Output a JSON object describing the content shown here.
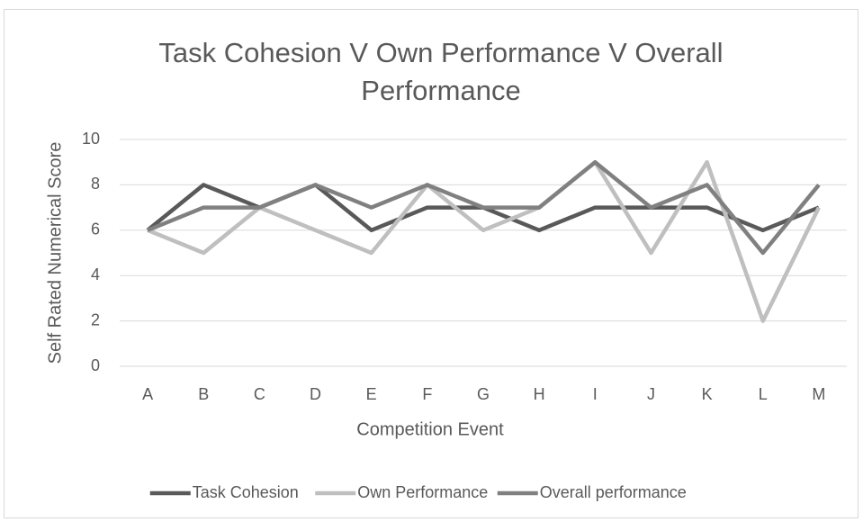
{
  "chart_data": {
    "type": "line",
    "title": "Task Cohesion V Own Performance V Overall Performance",
    "x_label": "Competition Event",
    "y_label": "Self Rated Numerical Score",
    "categories": [
      "A",
      "B",
      "C",
      "D",
      "E",
      "F",
      "G",
      "H",
      "I",
      "J",
      "K",
      "L",
      "M"
    ],
    "series": [
      {
        "name": "Task Cohesion",
        "color": "#595959",
        "values": [
          6,
          8,
          7,
          8,
          6,
          7,
          7,
          6,
          7,
          7,
          7,
          6,
          7
        ]
      },
      {
        "name": "Own Performance",
        "color": "#bfbfbf",
        "values": [
          6,
          5,
          7,
          6,
          5,
          8,
          6,
          7,
          9,
          5,
          9,
          2,
          7
        ]
      },
      {
        "name": "Overall performance",
        "color": "#808080",
        "values": [
          6,
          7,
          7,
          8,
          7,
          8,
          7,
          7,
          9,
          7,
          8,
          5,
          8
        ]
      }
    ],
    "ylim": [
      0,
      10
    ],
    "yticks": [
      0,
      2,
      4,
      6,
      8,
      10
    ],
    "grid": true,
    "legend": "bottom"
  }
}
